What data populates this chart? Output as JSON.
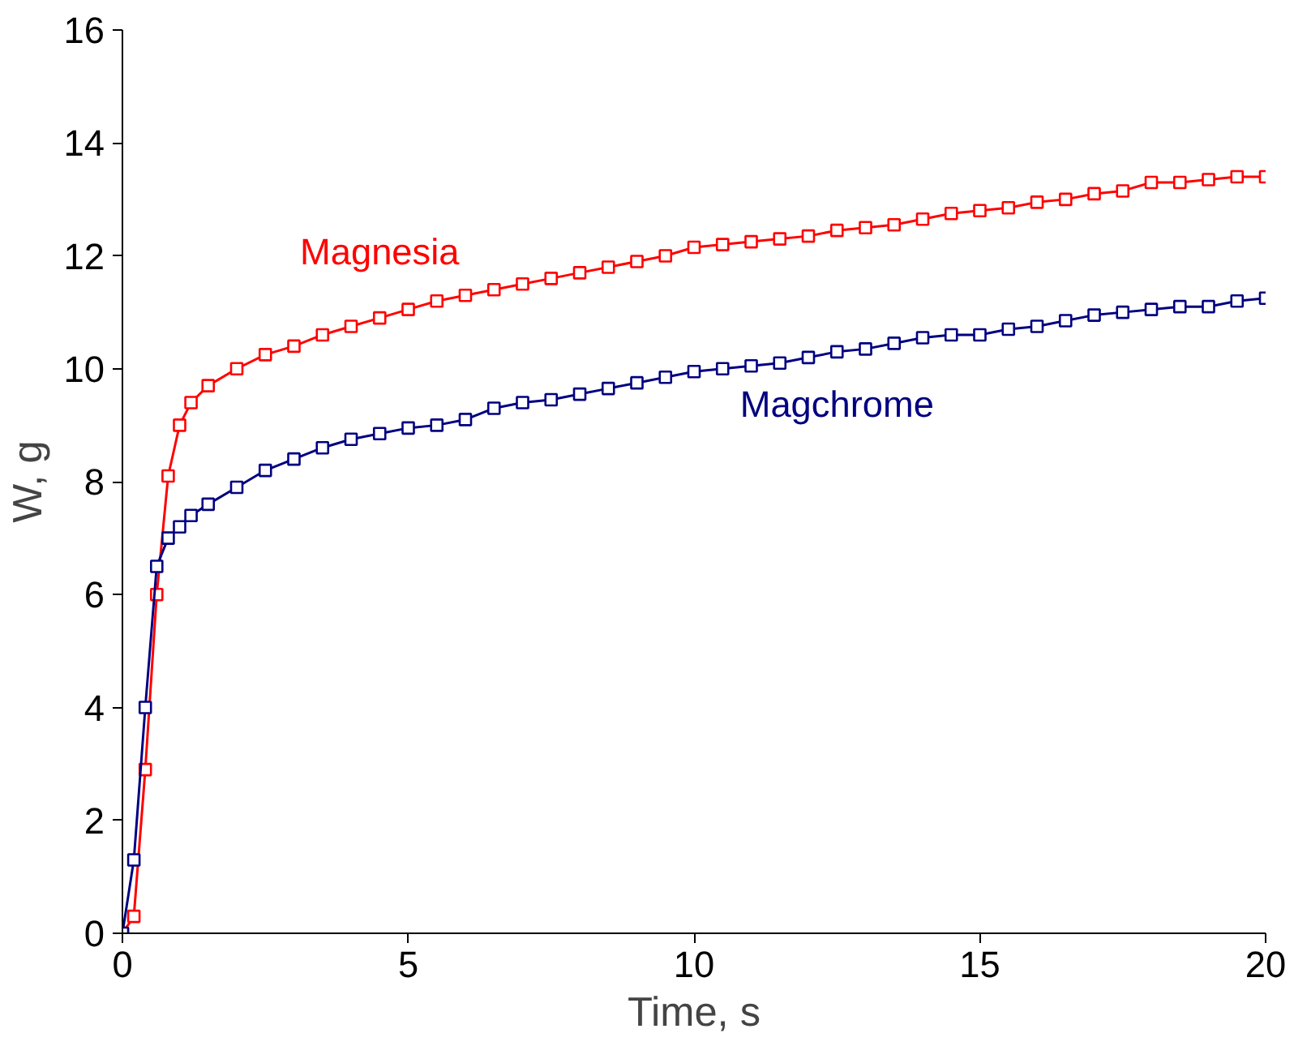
{
  "chart_data": {
    "type": "line",
    "xlabel": "Time, s",
    "ylabel": "W, g",
    "xlim": [
      0,
      20
    ],
    "xticks": [
      0,
      5,
      10,
      15,
      20
    ],
    "ylim": [
      0,
      16
    ],
    "yticks": [
      0,
      2,
      4,
      6,
      8,
      10,
      12,
      14,
      16
    ],
    "grid": false,
    "legend": false,
    "marker": "square",
    "line_style": "solid",
    "series": [
      {
        "name": "Magnesia",
        "color": "#ff0000",
        "x": [
          0,
          0.2,
          0.4,
          0.6,
          0.8,
          1.0,
          1.2,
          1.5,
          2,
          2.5,
          3,
          3.5,
          4,
          4.5,
          5,
          5.5,
          6,
          6.5,
          7,
          7.5,
          8,
          8.5,
          9,
          9.5,
          10,
          10.5,
          11,
          11.5,
          12,
          12.5,
          13,
          13.5,
          14,
          14.5,
          15,
          15.5,
          16,
          16.5,
          17,
          17.5,
          18,
          18.5,
          19,
          19.5,
          20
        ],
        "values": [
          0,
          0.3,
          2.9,
          6.0,
          8.1,
          9.0,
          9.4,
          9.7,
          10.0,
          10.25,
          10.4,
          10.6,
          10.75,
          10.9,
          11.05,
          11.2,
          11.3,
          11.4,
          11.5,
          11.6,
          11.7,
          11.8,
          11.9,
          12.0,
          12.15,
          12.2,
          12.25,
          12.3,
          12.35,
          12.45,
          12.5,
          12.55,
          12.65,
          12.75,
          12.8,
          12.85,
          12.95,
          13.0,
          13.1,
          13.15,
          13.3,
          13.3,
          13.35,
          13.4,
          13.4
        ]
      },
      {
        "name": "Magchrome",
        "color": "#000080",
        "x": [
          0,
          0.2,
          0.4,
          0.6,
          0.8,
          1.0,
          1.2,
          1.5,
          2,
          2.5,
          3,
          3.5,
          4,
          4.5,
          5,
          5.5,
          6,
          6.5,
          7,
          7.5,
          8,
          8.5,
          9,
          9.5,
          10,
          10.5,
          11,
          11.5,
          12,
          12.5,
          13,
          13.5,
          14,
          14.5,
          15,
          15.5,
          16,
          16.5,
          17,
          17.5,
          18,
          18.5,
          19,
          19.5,
          20
        ],
        "values": [
          0,
          1.3,
          4.0,
          6.5,
          7.0,
          7.2,
          7.4,
          7.6,
          7.9,
          8.2,
          8.4,
          8.6,
          8.75,
          8.85,
          8.95,
          9.0,
          9.1,
          9.3,
          9.4,
          9.45,
          9.55,
          9.65,
          9.75,
          9.85,
          9.95,
          10.0,
          10.05,
          10.1,
          10.2,
          10.3,
          10.35,
          10.45,
          10.55,
          10.6,
          10.6,
          10.7,
          10.75,
          10.85,
          10.95,
          11.0,
          11.05,
          11.1,
          11.1,
          11.2,
          11.25
        ]
      }
    ]
  }
}
